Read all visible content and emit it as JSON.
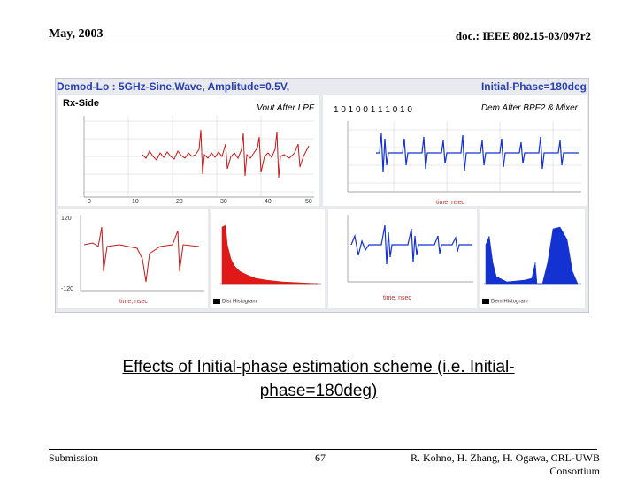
{
  "header": {
    "date": "May, 2003",
    "doc_id": "doc.: IEEE 802.15-03/097r2"
  },
  "figure": {
    "title_left": "Demod-Lo : 5GHz-Sine.Wave, Amplitude=0.5V,",
    "title_right": "Initial-Phase=180deg",
    "side_label": "Rx-Side",
    "panel_tl_label": "Vout After LPF",
    "panel_tr_label": "Dem After BPF2 & Mixer",
    "panel_tr_bits": "1 0 1 0 0 1 1 1 0 1 0",
    "x_axis_title": "time, nsec",
    "colors": {
      "red_trace": "#c81818",
      "blue_trace": "#1432d2",
      "title_blue": "#2a3db0"
    }
  },
  "caption": {
    "line1": "Effects of Initial-phase estimation scheme (i.e. Initial-",
    "line2": "phase=180deg)"
  },
  "footer": {
    "left": "Submission",
    "page": "67",
    "right_line1": "R. Kohno, H. Zhang, H. Ogawa, CRL-UWB",
    "right_line2": "Consortium"
  }
}
